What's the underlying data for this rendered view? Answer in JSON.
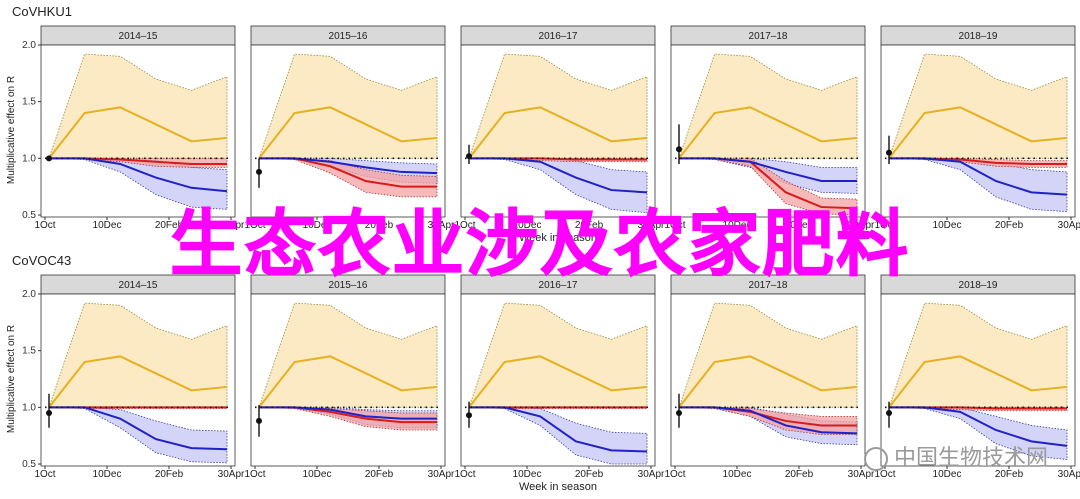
{
  "overlay_text": "生态农业涉及农家肥料",
  "watermark_text": "中国生物技术网",
  "colors": {
    "yellow_band": "#fbe3b0",
    "yellow_line": "#e6b020",
    "red_band": "#f4a2a2",
    "red_line": "#d81b1b",
    "blue_band": "#c4c6f6",
    "blue_line": "#2121c8",
    "strip": "#d9d9d9",
    "panel_border": "#333333"
  },
  "chart_data": [
    {
      "type": "line",
      "title": "CoVHKU1",
      "ylabel": "Multiplicative effect on R",
      "xlabel": "Week in season",
      "xticks": [
        "1Oct",
        "10Dec",
        "20Feb",
        "30Apr"
      ],
      "ylim": [
        0.5,
        2.0
      ],
      "yticks": [
        0.5,
        1.0,
        1.5,
        2.0
      ],
      "panels": [
        {
          "season": "2014–15",
          "point": 1.0,
          "point_ci": [
            1.0,
            1.0
          ],
          "yellow": [
            1.0,
            1.4,
            1.45,
            1.3,
            1.15,
            1.18
          ],
          "yellow_lo": [
            1.0,
            1.0,
            1.0,
            1.0,
            1.0,
            1.0
          ],
          "yellow_hi": [
            1.0,
            1.92,
            1.9,
            1.7,
            1.6,
            1.72
          ],
          "red": [
            1.0,
            1.0,
            0.99,
            0.97,
            0.95,
            0.95
          ],
          "red_lo": [
            1.0,
            0.99,
            0.97,
            0.93,
            0.92,
            0.92
          ],
          "red_hi": [
            1.0,
            1.0,
            1.0,
            1.0,
            1.0,
            1.0
          ],
          "blue": [
            1.0,
            1.0,
            0.95,
            0.83,
            0.74,
            0.71
          ],
          "blue_lo": [
            1.0,
            0.99,
            0.88,
            0.68,
            0.57,
            0.55
          ],
          "blue_hi": [
            1.0,
            1.0,
            1.0,
            0.98,
            0.92,
            0.9
          ]
        },
        {
          "season": "2015–16",
          "point": 0.88,
          "point_ci": [
            0.74,
            1.0
          ],
          "yellow": [
            1.0,
            1.4,
            1.45,
            1.3,
            1.15,
            1.18
          ],
          "yellow_lo": [
            1.0,
            1.0,
            1.0,
            1.0,
            1.0,
            1.0
          ],
          "yellow_hi": [
            1.0,
            1.92,
            1.9,
            1.7,
            1.6,
            1.72
          ],
          "red": [
            1.0,
            1.0,
            0.93,
            0.8,
            0.75,
            0.75
          ],
          "red_lo": [
            1.0,
            0.99,
            0.87,
            0.7,
            0.66,
            0.66
          ],
          "red_hi": [
            1.0,
            1.0,
            0.98,
            0.9,
            0.85,
            0.84
          ],
          "blue": [
            1.0,
            1.0,
            0.97,
            0.92,
            0.88,
            0.87
          ],
          "blue_lo": [
            1.0,
            0.99,
            0.93,
            0.84,
            0.79,
            0.78
          ],
          "blue_hi": [
            1.0,
            1.0,
            1.0,
            0.98,
            0.96,
            0.95
          ]
        },
        {
          "season": "2016–17",
          "point": 1.02,
          "point_ci": [
            0.95,
            1.12
          ],
          "yellow": [
            1.0,
            1.4,
            1.45,
            1.3,
            1.15,
            1.18
          ],
          "yellow_lo": [
            1.0,
            1.0,
            1.0,
            1.0,
            1.0,
            1.0
          ],
          "yellow_hi": [
            1.0,
            1.92,
            1.9,
            1.7,
            1.6,
            1.72
          ],
          "red": [
            1.0,
            1.0,
            1.0,
            0.99,
            0.99,
            0.99
          ],
          "red_lo": [
            1.0,
            0.99,
            0.98,
            0.97,
            0.97,
            0.97
          ],
          "red_hi": [
            1.0,
            1.0,
            1.0,
            1.0,
            1.0,
            1.0
          ],
          "blue": [
            1.0,
            1.0,
            0.97,
            0.83,
            0.72,
            0.7
          ],
          "blue_lo": [
            1.0,
            0.99,
            0.9,
            0.68,
            0.55,
            0.52
          ],
          "blue_hi": [
            1.0,
            1.0,
            1.0,
            0.98,
            0.9,
            0.88
          ]
        },
        {
          "season": "2017–18",
          "point": 1.08,
          "point_ci": [
            0.95,
            1.3
          ],
          "yellow": [
            1.0,
            1.4,
            1.45,
            1.3,
            1.15,
            1.18
          ],
          "yellow_lo": [
            1.0,
            1.0,
            1.0,
            1.0,
            1.0,
            1.0
          ],
          "yellow_hi": [
            1.0,
            1.92,
            1.9,
            1.7,
            1.6,
            1.72
          ],
          "red": [
            1.0,
            1.0,
            0.97,
            0.7,
            0.57,
            0.56
          ],
          "red_lo": [
            1.0,
            0.99,
            0.93,
            0.6,
            0.51,
            0.5
          ],
          "red_hi": [
            1.0,
            1.0,
            1.0,
            0.8,
            0.65,
            0.64
          ],
          "blue": [
            1.0,
            1.0,
            0.97,
            0.88,
            0.8,
            0.8
          ],
          "blue_lo": [
            1.0,
            0.99,
            0.92,
            0.78,
            0.7,
            0.69
          ],
          "blue_hi": [
            1.0,
            1.0,
            1.0,
            0.97,
            0.92,
            0.92
          ]
        },
        {
          "season": "2018–19",
          "point": 1.05,
          "point_ci": [
            0.95,
            1.2
          ],
          "yellow": [
            1.0,
            1.4,
            1.45,
            1.3,
            1.15,
            1.18
          ],
          "yellow_lo": [
            1.0,
            1.0,
            1.0,
            1.0,
            1.0,
            1.0
          ],
          "yellow_hi": [
            1.0,
            1.92,
            1.9,
            1.7,
            1.6,
            1.72
          ],
          "red": [
            1.0,
            1.0,
            0.99,
            0.96,
            0.95,
            0.95
          ],
          "red_lo": [
            1.0,
            0.99,
            0.97,
            0.93,
            0.92,
            0.92
          ],
          "red_hi": [
            1.0,
            1.0,
            1.0,
            0.99,
            0.98,
            0.98
          ],
          "blue": [
            1.0,
            1.0,
            0.97,
            0.8,
            0.7,
            0.68
          ],
          "blue_lo": [
            1.0,
            0.99,
            0.9,
            0.66,
            0.55,
            0.53
          ],
          "blue_hi": [
            1.0,
            1.0,
            1.0,
            0.96,
            0.9,
            0.88
          ]
        }
      ]
    },
    {
      "type": "line",
      "title": "CoVOC43",
      "ylabel": "Multiplicative effect on R",
      "xlabel": "Week in season",
      "xticks": [
        "1Oct",
        "10Dec",
        "20Feb",
        "30Apr"
      ],
      "ylim": [
        0.5,
        2.0
      ],
      "yticks": [
        0.5,
        1.0,
        1.5,
        2.0
      ],
      "panels": [
        {
          "season": "2014–15",
          "point": 0.95,
          "point_ci": [
            0.82,
            1.12
          ],
          "yellow": [
            1.0,
            1.4,
            1.45,
            1.3,
            1.15,
            1.18
          ],
          "yellow_lo": [
            1.0,
            1.0,
            1.0,
            1.0,
            1.0,
            1.0
          ],
          "yellow_hi": [
            1.0,
            1.92,
            1.9,
            1.7,
            1.6,
            1.72
          ],
          "red": [
            1.0,
            1.0,
            1.0,
            1.0,
            1.0,
            1.0
          ],
          "red_lo": [
            1.0,
            0.99,
            0.99,
            0.99,
            0.99,
            0.99
          ],
          "red_hi": [
            1.0,
            1.0,
            1.0,
            1.0,
            1.0,
            1.0
          ],
          "blue": [
            1.0,
            1.0,
            0.9,
            0.72,
            0.64,
            0.63
          ],
          "blue_lo": [
            1.0,
            0.99,
            0.82,
            0.6,
            0.52,
            0.51
          ],
          "blue_hi": [
            1.0,
            1.0,
            0.98,
            0.88,
            0.8,
            0.79
          ]
        },
        {
          "season": "2015–16",
          "point": 0.88,
          "point_ci": [
            0.74,
            1.02
          ],
          "yellow": [
            1.0,
            1.4,
            1.45,
            1.3,
            1.15,
            1.18
          ],
          "yellow_lo": [
            1.0,
            1.0,
            1.0,
            1.0,
            1.0,
            1.0
          ],
          "yellow_hi": [
            1.0,
            1.92,
            1.9,
            1.7,
            1.6,
            1.72
          ],
          "red": [
            1.0,
            1.0,
            0.96,
            0.9,
            0.87,
            0.87
          ],
          "red_lo": [
            1.0,
            0.99,
            0.92,
            0.83,
            0.8,
            0.8
          ],
          "red_hi": [
            1.0,
            1.0,
            0.99,
            0.97,
            0.95,
            0.95
          ],
          "blue": [
            1.0,
            1.0,
            0.98,
            0.92,
            0.9,
            0.9
          ],
          "blue_lo": [
            1.0,
            0.99,
            0.94,
            0.85,
            0.82,
            0.82
          ],
          "blue_hi": [
            1.0,
            1.0,
            1.0,
            0.98,
            0.97,
            0.97
          ]
        },
        {
          "season": "2016–17",
          "point": 0.93,
          "point_ci": [
            0.82,
            1.05
          ],
          "yellow": [
            1.0,
            1.4,
            1.45,
            1.3,
            1.15,
            1.18
          ],
          "yellow_lo": [
            1.0,
            1.0,
            1.0,
            1.0,
            1.0,
            1.0
          ],
          "yellow_hi": [
            1.0,
            1.92,
            1.9,
            1.7,
            1.6,
            1.72
          ],
          "red": [
            1.0,
            1.0,
            1.0,
            1.0,
            1.0,
            1.0
          ],
          "red_lo": [
            1.0,
            0.99,
            0.99,
            0.99,
            0.99,
            0.99
          ],
          "red_hi": [
            1.0,
            1.0,
            1.0,
            1.0,
            1.0,
            1.0
          ],
          "blue": [
            1.0,
            1.0,
            0.92,
            0.7,
            0.62,
            0.61
          ],
          "blue_lo": [
            1.0,
            0.99,
            0.84,
            0.58,
            0.5,
            0.5
          ],
          "blue_hi": [
            1.0,
            1.0,
            0.99,
            0.86,
            0.78,
            0.77
          ]
        },
        {
          "season": "2017–18",
          "point": 0.95,
          "point_ci": [
            0.82,
            1.12
          ],
          "yellow": [
            1.0,
            1.4,
            1.45,
            1.3,
            1.15,
            1.18
          ],
          "yellow_lo": [
            1.0,
            1.0,
            1.0,
            1.0,
            1.0,
            1.0
          ],
          "yellow_hi": [
            1.0,
            1.92,
            1.9,
            1.7,
            1.6,
            1.72
          ],
          "red": [
            1.0,
            1.0,
            0.96,
            0.88,
            0.84,
            0.84
          ],
          "red_lo": [
            1.0,
            0.99,
            0.92,
            0.8,
            0.76,
            0.76
          ],
          "red_hi": [
            1.0,
            1.0,
            0.99,
            0.95,
            0.92,
            0.92
          ],
          "blue": [
            1.0,
            1.0,
            0.97,
            0.84,
            0.78,
            0.77
          ],
          "blue_lo": [
            1.0,
            0.99,
            0.92,
            0.74,
            0.68,
            0.67
          ],
          "blue_hi": [
            1.0,
            1.0,
            1.0,
            0.94,
            0.88,
            0.87
          ]
        },
        {
          "season": "2018–19",
          "point": 0.95,
          "point_ci": [
            0.82,
            1.05
          ],
          "yellow": [
            1.0,
            1.4,
            1.45,
            1.3,
            1.15,
            1.18
          ],
          "yellow_lo": [
            1.0,
            1.0,
            1.0,
            1.0,
            1.0,
            1.0
          ],
          "yellow_hi": [
            1.0,
            1.92,
            1.9,
            1.7,
            1.6,
            1.72
          ],
          "red": [
            1.0,
            1.0,
            1.0,
            0.99,
            0.99,
            0.99
          ],
          "red_lo": [
            1.0,
            0.99,
            0.98,
            0.97,
            0.97,
            0.97
          ],
          "red_hi": [
            1.0,
            1.0,
            1.0,
            1.0,
            1.0,
            1.0
          ],
          "blue": [
            1.0,
            1.0,
            0.96,
            0.8,
            0.7,
            0.66
          ],
          "blue_lo": [
            1.0,
            0.99,
            0.9,
            0.68,
            0.57,
            0.54
          ],
          "blue_hi": [
            1.0,
            1.0,
            1.0,
            0.92,
            0.84,
            0.8
          ]
        }
      ]
    }
  ]
}
